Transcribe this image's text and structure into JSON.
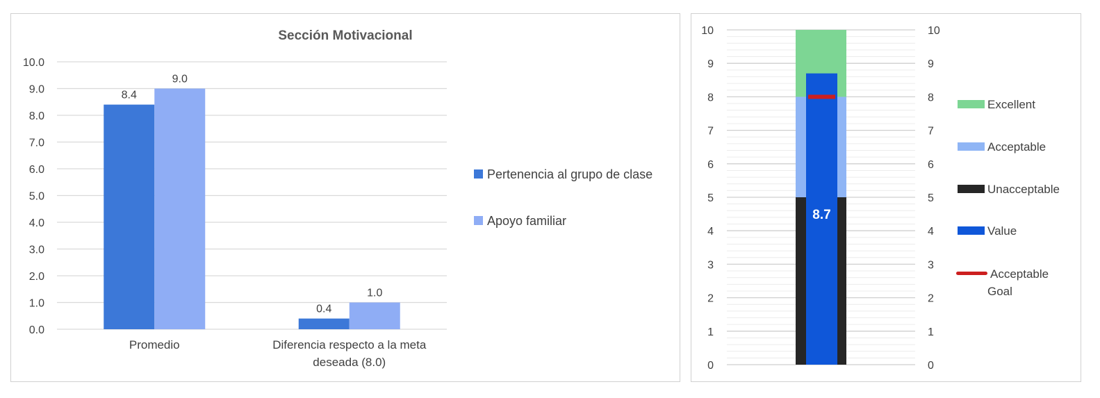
{
  "chart_data": [
    {
      "type": "bar",
      "title": "Sección Motivacional",
      "categories": [
        "Promedio",
        "Diferencia respecto a la meta deseada (8.0)"
      ],
      "category_lines": [
        [
          "Promedio"
        ],
        [
          "Diferencia respecto a la meta",
          "deseada (8.0)"
        ]
      ],
      "series": [
        {
          "name": "Pertenencia al grupo de clase",
          "values": [
            8.4,
            0.4
          ],
          "labels": [
            "8.4",
            "0.4"
          ],
          "color": "#3c78d8"
        },
        {
          "name": "Apoyo familiar",
          "values": [
            9.0,
            1.0
          ],
          "labels": [
            "9.0",
            "1.0"
          ],
          "color": "#8fadf5"
        }
      ],
      "ylim": [
        0,
        10
      ],
      "yticks": [
        "0.0",
        "1.0",
        "2.0",
        "3.0",
        "4.0",
        "5.0",
        "6.0",
        "7.0",
        "8.0",
        "9.0",
        "10.0"
      ],
      "xlabel": "",
      "ylabel": "",
      "grid": true,
      "legend_position": "right"
    },
    {
      "type": "bar",
      "subtype": "bullet",
      "ylim": [
        0,
        10
      ],
      "yticks": [
        "0",
        "1",
        "2",
        "3",
        "4",
        "5",
        "6",
        "7",
        "8",
        "9",
        "10"
      ],
      "bands": [
        {
          "name": "Unacceptable",
          "from": 0,
          "to": 5,
          "color": "#262626"
        },
        {
          "name": "Acceptable",
          "from": 5,
          "to": 8,
          "color": "#8fb5f5"
        },
        {
          "name": "Excellent",
          "from": 8,
          "to": 10,
          "color": "#7dd694"
        }
      ],
      "value": 8.7,
      "value_label": "8.7",
      "value_color": "#0f57d9",
      "goal": 8,
      "goal_color": "#cc1f1f",
      "legend": [
        {
          "name": "Excellent",
          "kind": "patch",
          "color": "#7dd694"
        },
        {
          "name": "Acceptable",
          "kind": "patch",
          "color": "#8fb5f5"
        },
        {
          "name": "Unacceptable",
          "kind": "patch",
          "color": "#262626"
        },
        {
          "name": "Value",
          "kind": "patch",
          "color": "#0f57d9"
        },
        {
          "name": "Acceptable Goal",
          "lines": [
            "Acceptable",
            "Goal"
          ],
          "kind": "line",
          "color": "#cc1f1f"
        }
      ],
      "grid": true,
      "legend_position": "right"
    }
  ]
}
